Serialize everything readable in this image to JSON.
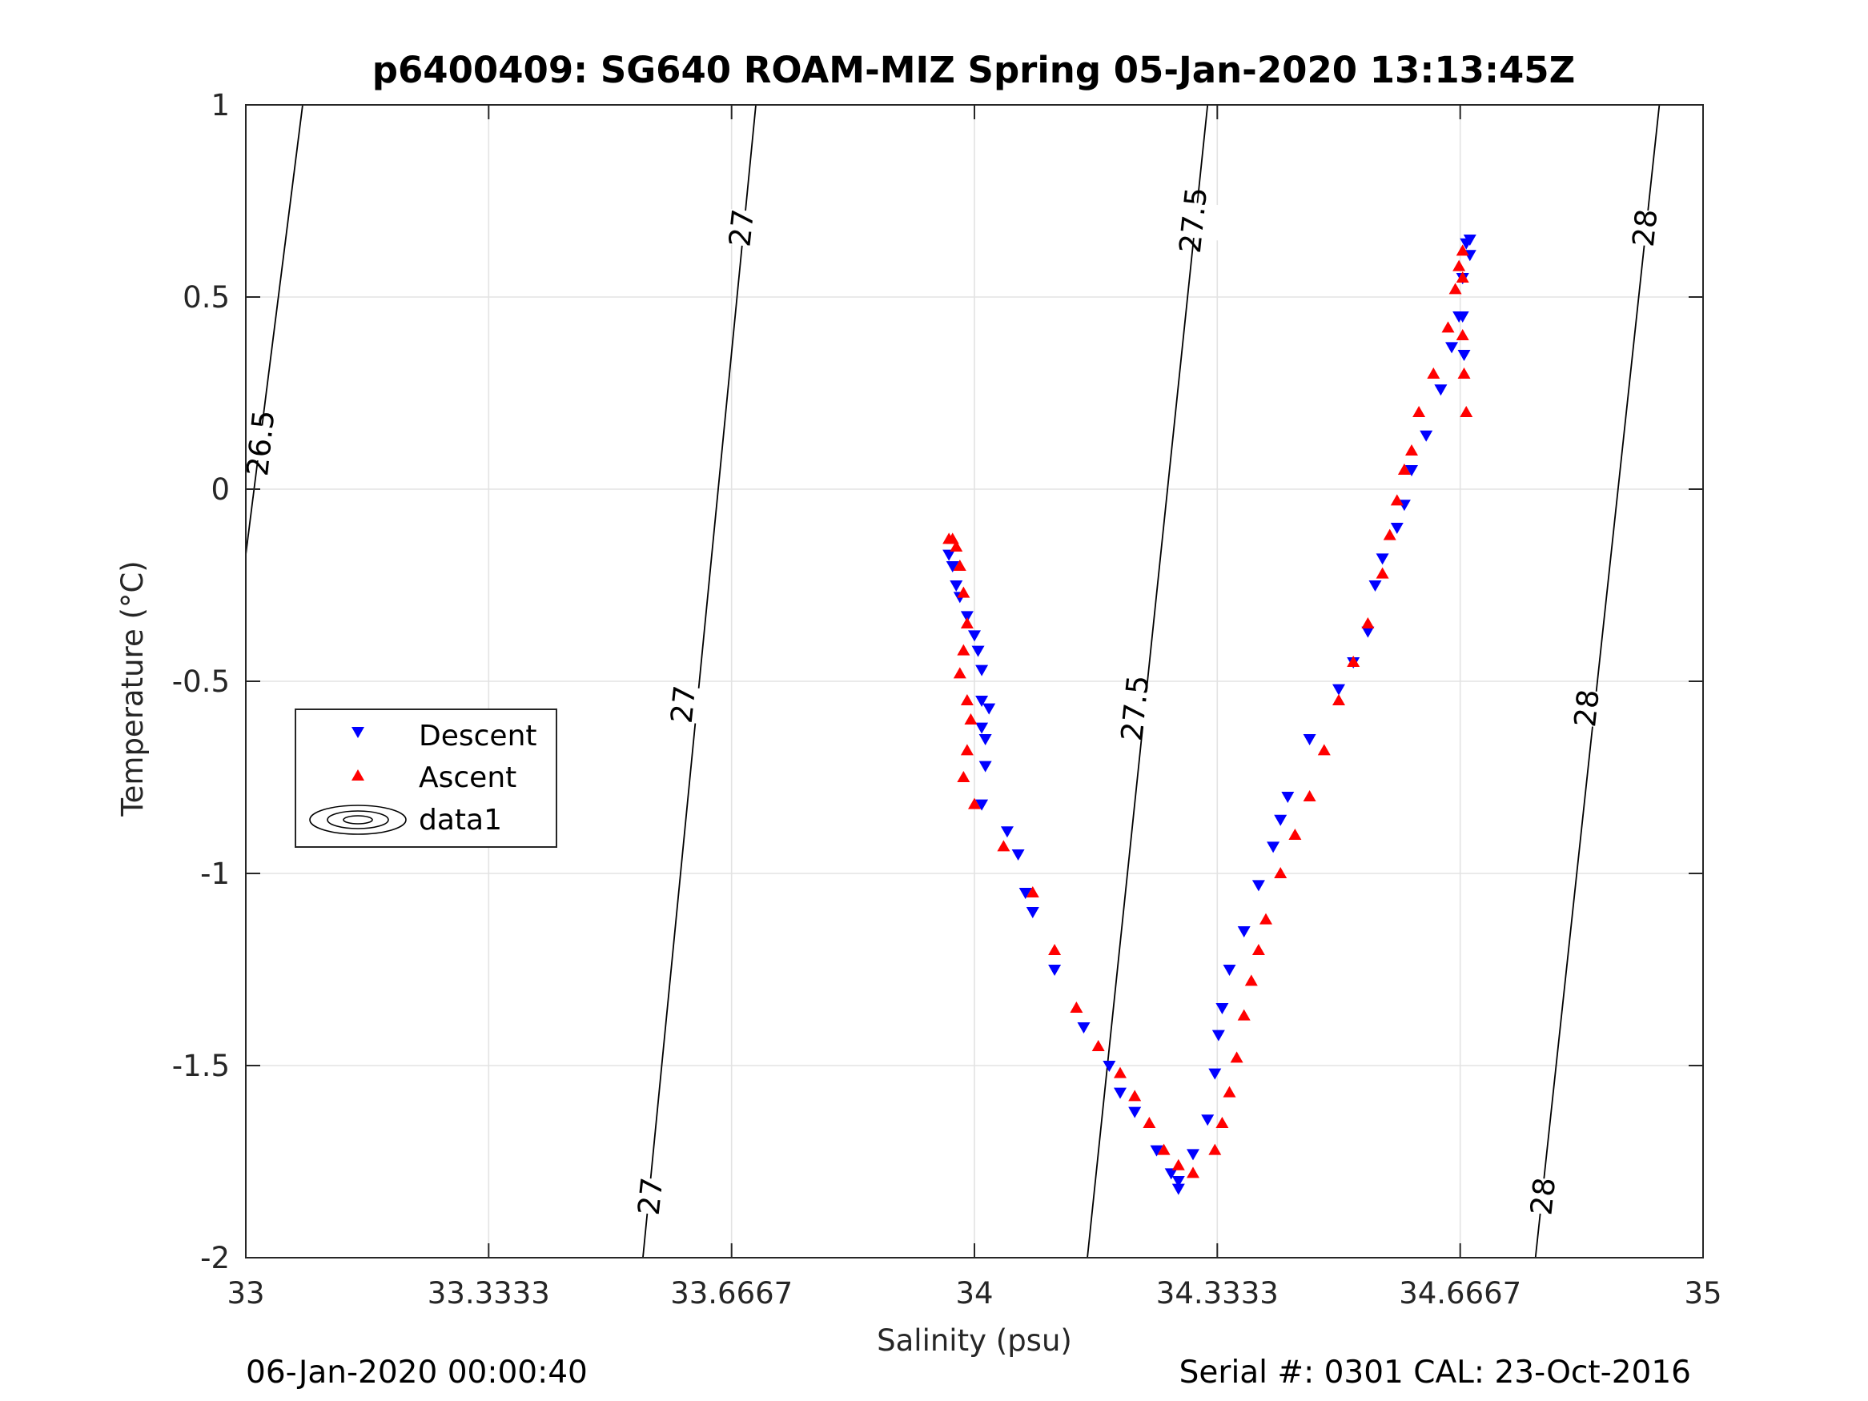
{
  "chart_data": {
    "type": "scatter",
    "title": "p6400409: SG640 ROAM-MIZ Spring 05-Jan-2020 13:13:45Z",
    "xlabel": "Salinity (psu)",
    "ylabel": "Temperature (°C)",
    "xlim": [
      33,
      35
    ],
    "ylim": [
      -2,
      1
    ],
    "x_ticks": [
      33,
      33.3333,
      33.6667,
      34,
      34.3333,
      34.6667,
      35
    ],
    "x_tick_labels": [
      "33",
      "33.3333",
      "33.6667",
      "34",
      "34.3333",
      "34.6667",
      "35"
    ],
    "y_ticks": [
      1,
      0.5,
      0,
      -0.5,
      -1,
      -1.5,
      -2
    ],
    "y_tick_labels": [
      "1",
      "0.5",
      "0",
      "-0.5",
      "-1",
      "-1.5",
      "-2"
    ],
    "grid": true,
    "legend_position": "left-middle",
    "legend": [
      "Descent",
      "Ascent",
      "data1"
    ],
    "series": [
      {
        "name": "Descent",
        "marker": "triangle-down",
        "color": "#0000ff",
        "x": [
          33.965,
          33.97,
          33.975,
          33.98,
          33.99,
          34.0,
          34.005,
          34.01,
          34.01,
          34.01,
          34.015,
          34.02,
          34.015,
          34.01,
          34.045,
          34.06,
          34.07,
          34.08,
          34.11,
          34.15,
          34.185,
          34.2,
          34.22,
          34.25,
          34.27,
          34.28,
          34.28,
          34.3,
          34.32,
          34.33,
          34.335,
          34.34,
          34.35,
          34.37,
          34.39,
          34.41,
          34.42,
          34.43,
          34.46,
          34.5,
          34.52,
          34.54,
          34.55,
          34.56,
          34.58,
          34.59,
          34.6,
          34.62,
          34.64,
          34.655,
          34.665,
          34.67,
          34.68,
          34.68,
          34.675,
          34.67,
          34.67,
          34.672
        ],
        "y": [
          -0.17,
          -0.2,
          -0.25,
          -0.28,
          -0.33,
          -0.38,
          -0.42,
          -0.47,
          -0.55,
          -0.62,
          -0.65,
          -0.57,
          -0.72,
          -0.82,
          -0.89,
          -0.95,
          -1.05,
          -1.1,
          -1.25,
          -1.4,
          -1.5,
          -1.57,
          -1.62,
          -1.72,
          -1.78,
          -1.8,
          -1.82,
          -1.73,
          -1.64,
          -1.52,
          -1.42,
          -1.35,
          -1.25,
          -1.15,
          -1.03,
          -0.93,
          -0.86,
          -0.8,
          -0.65,
          -0.52,
          -0.45,
          -0.37,
          -0.25,
          -0.18,
          -0.1,
          -0.04,
          0.05,
          0.14,
          0.26,
          0.37,
          0.45,
          0.55,
          0.61,
          0.65,
          0.64,
          0.55,
          0.45,
          0.35
        ]
      },
      {
        "name": "Ascent",
        "marker": "triangle-up",
        "color": "#ff0000",
        "x": [
          33.965,
          33.97,
          33.975,
          33.98,
          33.985,
          33.99,
          33.985,
          33.98,
          33.99,
          33.995,
          33.99,
          33.985,
          34.0,
          34.04,
          34.08,
          34.11,
          34.14,
          34.17,
          34.2,
          34.22,
          34.24,
          34.26,
          34.28,
          34.3,
          34.33,
          34.34,
          34.35,
          34.36,
          34.37,
          34.38,
          34.39,
          34.4,
          34.42,
          34.44,
          34.46,
          34.48,
          34.5,
          34.52,
          34.54,
          34.56,
          34.57,
          34.58,
          34.59,
          34.6,
          34.61,
          34.63,
          34.65,
          34.66,
          34.665,
          34.67,
          34.67,
          34.67,
          34.672,
          34.675
        ],
        "y": [
          -0.13,
          -0.13,
          -0.15,
          -0.2,
          -0.27,
          -0.35,
          -0.42,
          -0.48,
          -0.55,
          -0.6,
          -0.68,
          -0.75,
          -0.82,
          -0.93,
          -1.05,
          -1.2,
          -1.35,
          -1.45,
          -1.52,
          -1.58,
          -1.65,
          -1.72,
          -1.76,
          -1.78,
          -1.72,
          -1.65,
          -1.57,
          -1.48,
          -1.37,
          -1.28,
          -1.2,
          -1.12,
          -1.0,
          -0.9,
          -0.8,
          -0.68,
          -0.55,
          -0.45,
          -0.35,
          -0.22,
          -0.12,
          -0.03,
          0.05,
          0.1,
          0.2,
          0.3,
          0.42,
          0.52,
          0.58,
          0.62,
          0.55,
          0.4,
          0.3,
          0.2
        ]
      }
    ],
    "isopycnals": [
      {
        "label": "26.5",
        "bottom": [
          33.0,
          -0.17
        ],
        "top": [
          33.078,
          1
        ]
      },
      {
        "label": "27",
        "bottom": [
          33.545,
          -2
        ],
        "top": [
          33.7,
          1
        ]
      },
      {
        "label": "27.5",
        "bottom": [
          34.155,
          -2
        ],
        "top": [
          34.32,
          1
        ]
      },
      {
        "label": "28",
        "bottom": [
          34.77,
          -2
        ],
        "top": [
          34.94,
          1
        ]
      }
    ],
    "isopycnal_labels": [
      {
        "text": "26.5",
        "at": [
          33.02,
          0.12
        ]
      },
      {
        "text": "27",
        "at": [
          33.68,
          0.68
        ]
      },
      {
        "text": "27",
        "at": [
          33.6,
          -0.56
        ]
      },
      {
        "text": "27",
        "at": [
          33.555,
          -1.84
        ]
      },
      {
        "text": "27.5",
        "at": [
          34.3,
          0.7
        ]
      },
      {
        "text": "27.5",
        "at": [
          34.22,
          -0.57
        ]
      },
      {
        "text": "28",
        "at": [
          34.92,
          0.68
        ]
      },
      {
        "text": "28",
        "at": [
          34.84,
          -0.57
        ]
      },
      {
        "text": "28",
        "at": [
          34.78,
          -1.84
        ]
      }
    ]
  },
  "footer": {
    "left": "06-Jan-2020 00:00:40",
    "right": "Serial #: 0301  CAL: 23-Oct-2016"
  }
}
